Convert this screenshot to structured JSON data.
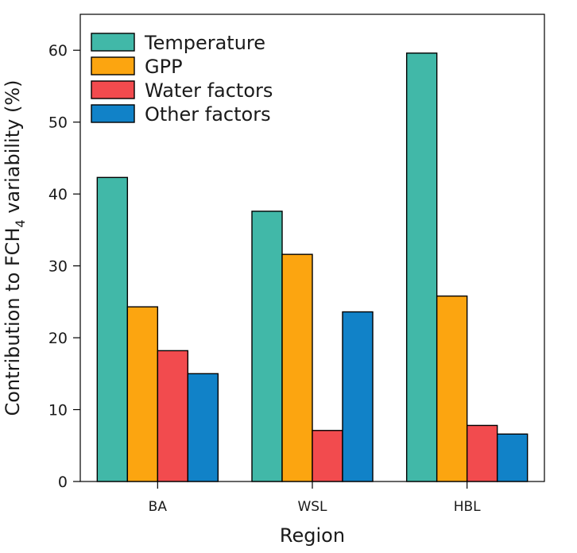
{
  "chart_data": {
    "type": "bar",
    "title": "",
    "xlabel": "Region",
    "ylabel_parts": [
      "Contribution to FCH",
      "4",
      " variability (%)"
    ],
    "categories": [
      "BA",
      "WSL",
      "HBL"
    ],
    "ylim": [
      0,
      65
    ],
    "yticks": [
      0,
      10,
      20,
      30,
      40,
      50,
      60
    ],
    "grid": false,
    "legend_position": "top-left",
    "series": [
      {
        "name": "Temperature",
        "color": "#41B8A8",
        "values": [
          42.3,
          37.6,
          59.6
        ]
      },
      {
        "name": "GPP",
        "color": "#FCA510",
        "values": [
          24.3,
          31.6,
          25.8
        ]
      },
      {
        "name": "Water factors",
        "color": "#F24B4E",
        "values": [
          18.2,
          7.1,
          7.8
        ]
      },
      {
        "name": "Other factors",
        "color": "#1182C8",
        "values": [
          15.0,
          23.6,
          6.6
        ]
      }
    ]
  }
}
